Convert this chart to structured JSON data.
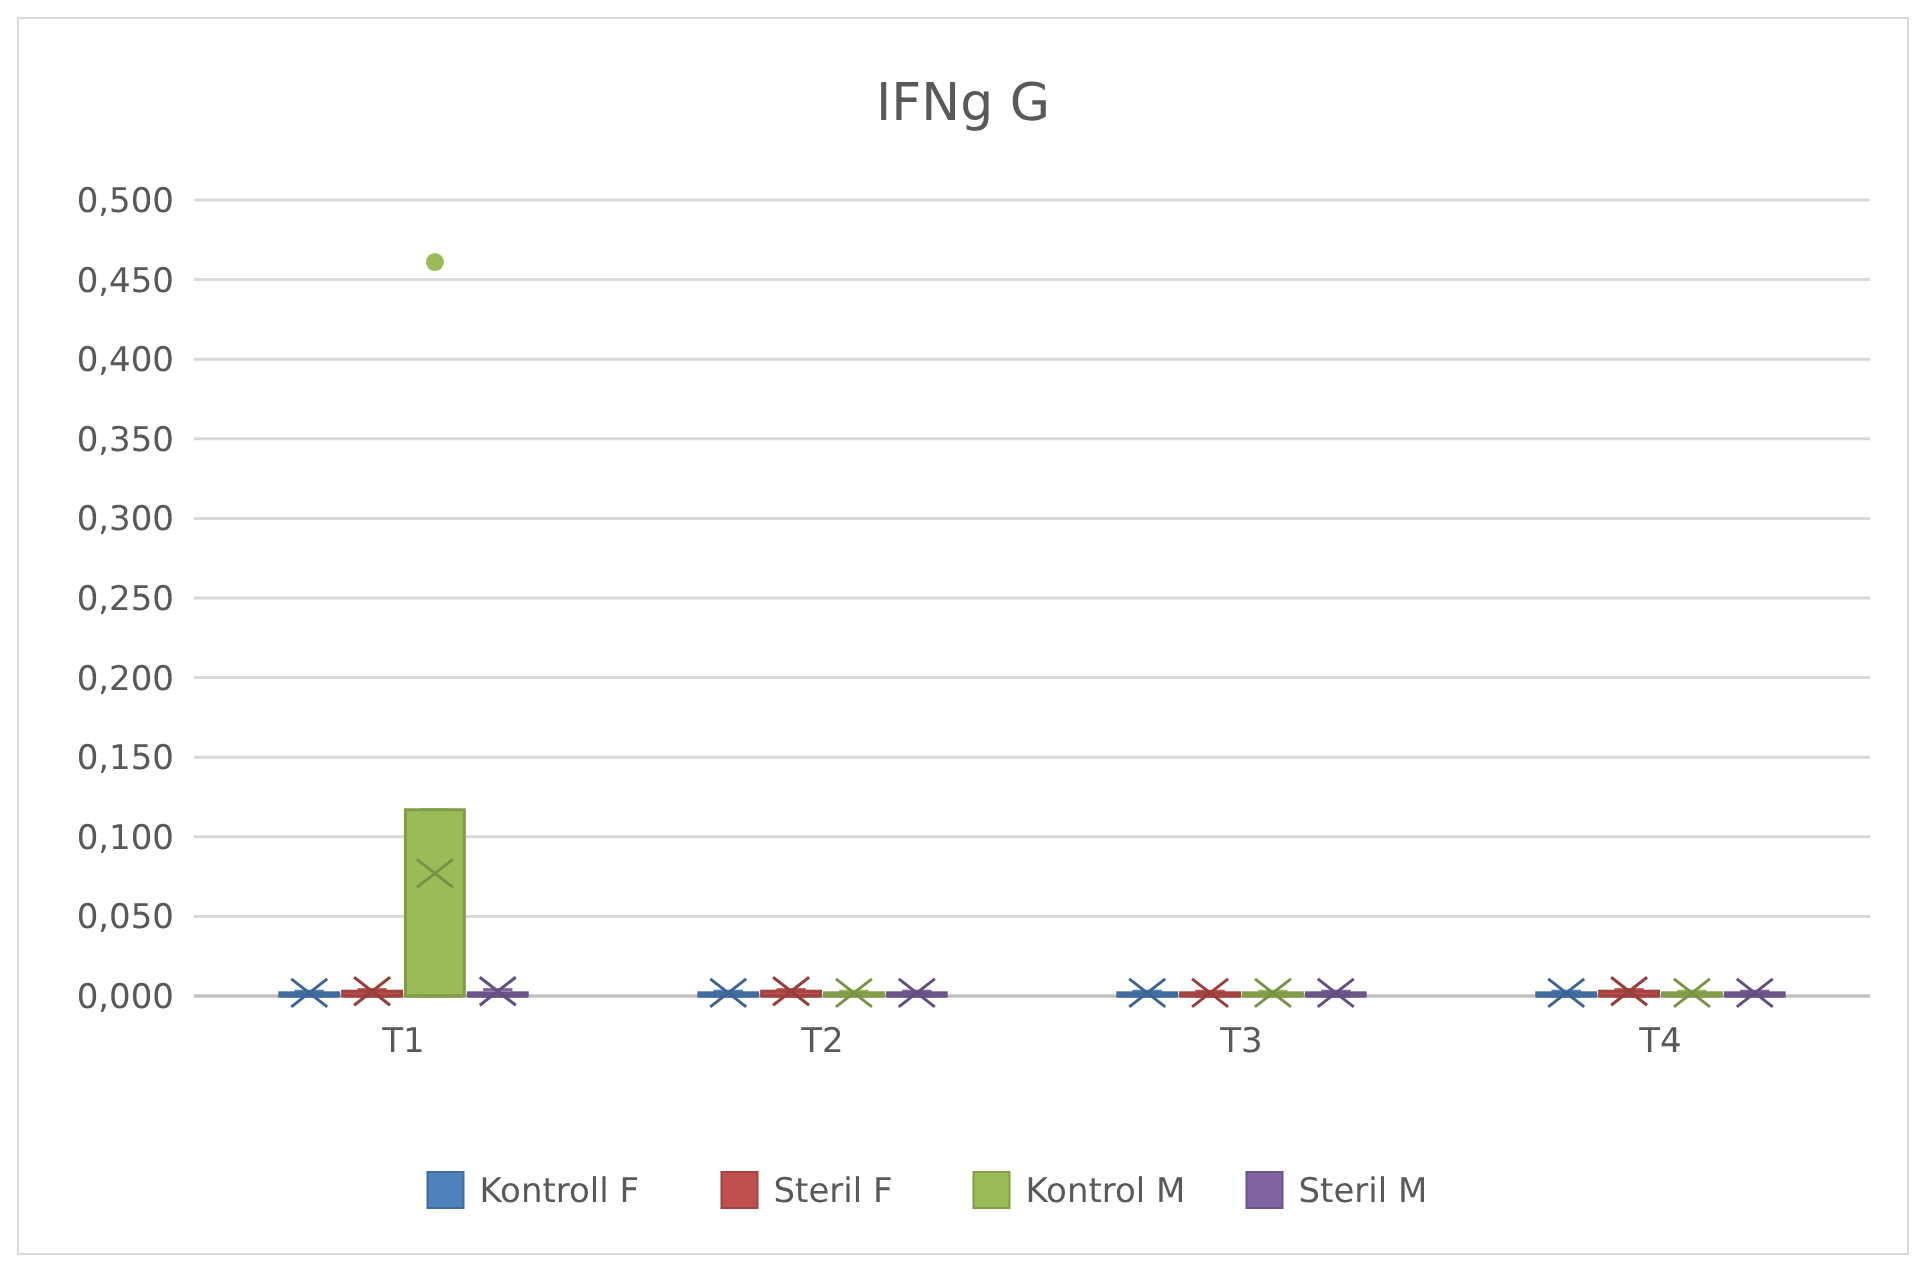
{
  "chart_data": {
    "type": "box",
    "title": "IFNg G",
    "categories": [
      "T1",
      "T2",
      "T3",
      "T4"
    ],
    "ylim": [
      0,
      0.5
    ],
    "yticks": [
      {
        "value": 0,
        "label": "0,000"
      },
      {
        "value": 0.05,
        "label": "0,050"
      },
      {
        "value": 0.1,
        "label": "0,100"
      },
      {
        "value": 0.15,
        "label": "0,150"
      },
      {
        "value": 0.2,
        "label": "0,200"
      },
      {
        "value": 0.25,
        "label": "0,250"
      },
      {
        "value": 0.3,
        "label": "0,300"
      },
      {
        "value": 0.35,
        "label": "0,350"
      },
      {
        "value": 0.4,
        "label": "0,400"
      },
      {
        "value": 0.45,
        "label": "0,450"
      },
      {
        "value": 0.5,
        "label": "0,500"
      }
    ],
    "grid": "y",
    "legend": "bottom",
    "series": [
      {
        "name": "Kontroll F",
        "color": "#4f81bd",
        "boxes": [
          {
            "low": 0,
            "q1": 0,
            "median": 0,
            "q3": 0.002,
            "high": 0.003,
            "mean": 0.002
          },
          {
            "low": 0,
            "q1": 0,
            "median": 0,
            "q3": 0.002,
            "high": 0.003,
            "mean": 0.002
          },
          {
            "low": 0,
            "q1": 0,
            "median": 0,
            "q3": 0.002,
            "high": 0.003,
            "mean": 0.002
          },
          {
            "low": 0,
            "q1": 0,
            "median": 0,
            "q3": 0.002,
            "high": 0.003,
            "mean": 0.002
          }
        ]
      },
      {
        "name": "Steril F",
        "color": "#c0504d",
        "boxes": [
          {
            "low": 0,
            "q1": 0,
            "median": 0,
            "q3": 0.003,
            "high": 0.004,
            "mean": 0.003
          },
          {
            "low": 0,
            "q1": 0,
            "median": 0,
            "q3": 0.003,
            "high": 0.004,
            "mean": 0.003
          },
          {
            "low": 0,
            "q1": 0,
            "median": 0,
            "q3": 0.002,
            "high": 0.003,
            "mean": 0.002
          },
          {
            "low": 0,
            "q1": 0,
            "median": 0,
            "q3": 0.003,
            "high": 0.004,
            "mean": 0.003
          }
        ]
      },
      {
        "name": "Kontrol M",
        "color": "#9bbb59",
        "boxes": [
          {
            "low": 0,
            "q1": 0,
            "median": 0,
            "q3": 0.117,
            "high": 0.117,
            "mean": 0.077,
            "outliers": [
              0.461
            ]
          },
          {
            "low": 0,
            "q1": 0,
            "median": 0,
            "q3": 0.002,
            "high": 0.003,
            "mean": 0.002
          },
          {
            "low": 0,
            "q1": 0,
            "median": 0,
            "q3": 0.002,
            "high": 0.003,
            "mean": 0.002
          },
          {
            "low": 0,
            "q1": 0,
            "median": 0,
            "q3": 0.002,
            "high": 0.003,
            "mean": 0.002
          }
        ]
      },
      {
        "name": "Steril M",
        "color": "#8064a2",
        "boxes": [
          {
            "low": 0,
            "q1": 0,
            "median": 0,
            "q3": 0.002,
            "high": 0.004,
            "mean": 0.003
          },
          {
            "low": 0,
            "q1": 0,
            "median": 0,
            "q3": 0.002,
            "high": 0.003,
            "mean": 0.002
          },
          {
            "low": 0,
            "q1": 0,
            "median": 0,
            "q3": 0.002,
            "high": 0.003,
            "mean": 0.002
          },
          {
            "low": 0,
            "q1": 0,
            "median": 0,
            "q3": 0.002,
            "high": 0.003,
            "mean": 0.002
          }
        ]
      }
    ]
  }
}
